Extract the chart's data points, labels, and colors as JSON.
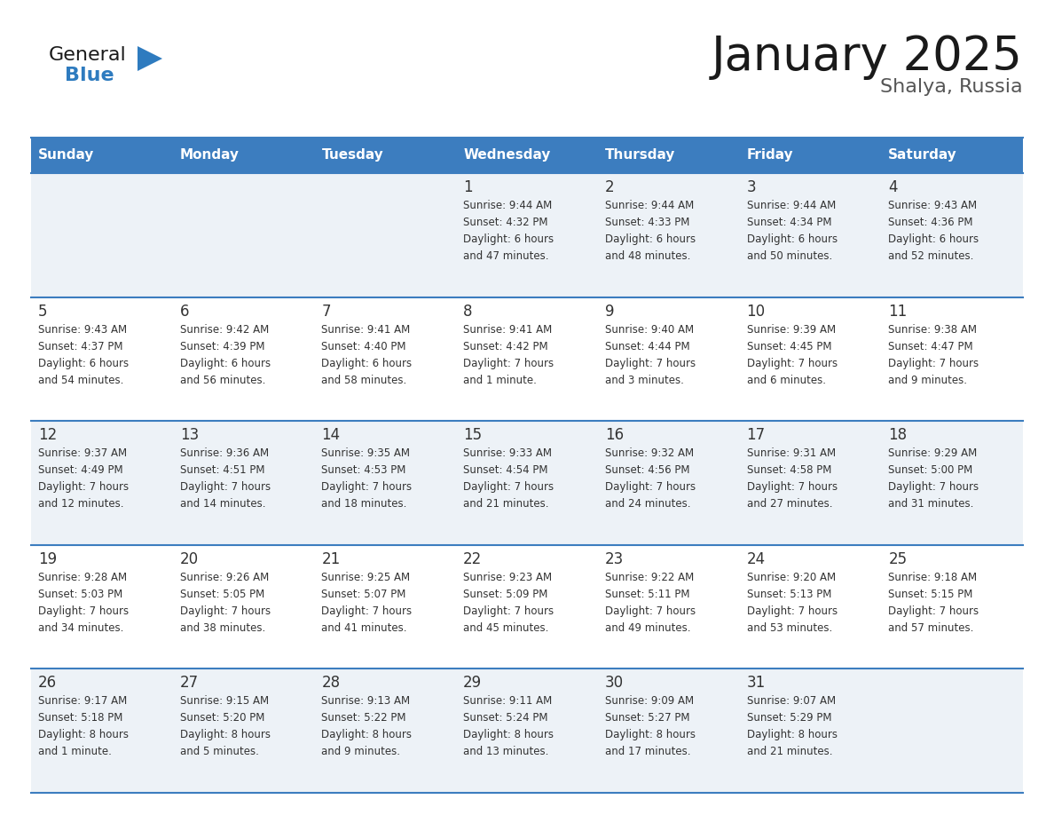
{
  "title": "January 2025",
  "subtitle": "Shalya, Russia",
  "days_of_week": [
    "Sunday",
    "Monday",
    "Tuesday",
    "Wednesday",
    "Thursday",
    "Friday",
    "Saturday"
  ],
  "header_bg": "#3c7dbf",
  "header_text": "#ffffff",
  "cell_bg_odd": "#edf2f7",
  "cell_bg_even": "#ffffff",
  "cell_text": "#333333",
  "border_color": "#3c7dbf",
  "day_number_color": "#333333",
  "calendar_data": [
    {
      "day": 1,
      "col": 3,
      "row": 0,
      "sunrise": "9:44 AM",
      "sunset": "4:32 PM",
      "daylight": "6 hours",
      "daylight2": "and 47 minutes."
    },
    {
      "day": 2,
      "col": 4,
      "row": 0,
      "sunrise": "9:44 AM",
      "sunset": "4:33 PM",
      "daylight": "6 hours",
      "daylight2": "and 48 minutes."
    },
    {
      "day": 3,
      "col": 5,
      "row": 0,
      "sunrise": "9:44 AM",
      "sunset": "4:34 PM",
      "daylight": "6 hours",
      "daylight2": "and 50 minutes."
    },
    {
      "day": 4,
      "col": 6,
      "row": 0,
      "sunrise": "9:43 AM",
      "sunset": "4:36 PM",
      "daylight": "6 hours",
      "daylight2": "and 52 minutes."
    },
    {
      "day": 5,
      "col": 0,
      "row": 1,
      "sunrise": "9:43 AM",
      "sunset": "4:37 PM",
      "daylight": "6 hours",
      "daylight2": "and 54 minutes."
    },
    {
      "day": 6,
      "col": 1,
      "row": 1,
      "sunrise": "9:42 AM",
      "sunset": "4:39 PM",
      "daylight": "6 hours",
      "daylight2": "and 56 minutes."
    },
    {
      "day": 7,
      "col": 2,
      "row": 1,
      "sunrise": "9:41 AM",
      "sunset": "4:40 PM",
      "daylight": "6 hours",
      "daylight2": "and 58 minutes."
    },
    {
      "day": 8,
      "col": 3,
      "row": 1,
      "sunrise": "9:41 AM",
      "sunset": "4:42 PM",
      "daylight": "7 hours",
      "daylight2": "and 1 minute."
    },
    {
      "day": 9,
      "col": 4,
      "row": 1,
      "sunrise": "9:40 AM",
      "sunset": "4:44 PM",
      "daylight": "7 hours",
      "daylight2": "and 3 minutes."
    },
    {
      "day": 10,
      "col": 5,
      "row": 1,
      "sunrise": "9:39 AM",
      "sunset": "4:45 PM",
      "daylight": "7 hours",
      "daylight2": "and 6 minutes."
    },
    {
      "day": 11,
      "col": 6,
      "row": 1,
      "sunrise": "9:38 AM",
      "sunset": "4:47 PM",
      "daylight": "7 hours",
      "daylight2": "and 9 minutes."
    },
    {
      "day": 12,
      "col": 0,
      "row": 2,
      "sunrise": "9:37 AM",
      "sunset": "4:49 PM",
      "daylight": "7 hours",
      "daylight2": "and 12 minutes."
    },
    {
      "day": 13,
      "col": 1,
      "row": 2,
      "sunrise": "9:36 AM",
      "sunset": "4:51 PM",
      "daylight": "7 hours",
      "daylight2": "and 14 minutes."
    },
    {
      "day": 14,
      "col": 2,
      "row": 2,
      "sunrise": "9:35 AM",
      "sunset": "4:53 PM",
      "daylight": "7 hours",
      "daylight2": "and 18 minutes."
    },
    {
      "day": 15,
      "col": 3,
      "row": 2,
      "sunrise": "9:33 AM",
      "sunset": "4:54 PM",
      "daylight": "7 hours",
      "daylight2": "and 21 minutes."
    },
    {
      "day": 16,
      "col": 4,
      "row": 2,
      "sunrise": "9:32 AM",
      "sunset": "4:56 PM",
      "daylight": "7 hours",
      "daylight2": "and 24 minutes."
    },
    {
      "day": 17,
      "col": 5,
      "row": 2,
      "sunrise": "9:31 AM",
      "sunset": "4:58 PM",
      "daylight": "7 hours",
      "daylight2": "and 27 minutes."
    },
    {
      "day": 18,
      "col": 6,
      "row": 2,
      "sunrise": "9:29 AM",
      "sunset": "5:00 PM",
      "daylight": "7 hours",
      "daylight2": "and 31 minutes."
    },
    {
      "day": 19,
      "col": 0,
      "row": 3,
      "sunrise": "9:28 AM",
      "sunset": "5:03 PM",
      "daylight": "7 hours",
      "daylight2": "and 34 minutes."
    },
    {
      "day": 20,
      "col": 1,
      "row": 3,
      "sunrise": "9:26 AM",
      "sunset": "5:05 PM",
      "daylight": "7 hours",
      "daylight2": "and 38 minutes."
    },
    {
      "day": 21,
      "col": 2,
      "row": 3,
      "sunrise": "9:25 AM",
      "sunset": "5:07 PM",
      "daylight": "7 hours",
      "daylight2": "and 41 minutes."
    },
    {
      "day": 22,
      "col": 3,
      "row": 3,
      "sunrise": "9:23 AM",
      "sunset": "5:09 PM",
      "daylight": "7 hours",
      "daylight2": "and 45 minutes."
    },
    {
      "day": 23,
      "col": 4,
      "row": 3,
      "sunrise": "9:22 AM",
      "sunset": "5:11 PM",
      "daylight": "7 hours",
      "daylight2": "and 49 minutes."
    },
    {
      "day": 24,
      "col": 5,
      "row": 3,
      "sunrise": "9:20 AM",
      "sunset": "5:13 PM",
      "daylight": "7 hours",
      "daylight2": "and 53 minutes."
    },
    {
      "day": 25,
      "col": 6,
      "row": 3,
      "sunrise": "9:18 AM",
      "sunset": "5:15 PM",
      "daylight": "7 hours",
      "daylight2": "and 57 minutes."
    },
    {
      "day": 26,
      "col": 0,
      "row": 4,
      "sunrise": "9:17 AM",
      "sunset": "5:18 PM",
      "daylight": "8 hours",
      "daylight2": "and 1 minute."
    },
    {
      "day": 27,
      "col": 1,
      "row": 4,
      "sunrise": "9:15 AM",
      "sunset": "5:20 PM",
      "daylight": "8 hours",
      "daylight2": "and 5 minutes."
    },
    {
      "day": 28,
      "col": 2,
      "row": 4,
      "sunrise": "9:13 AM",
      "sunset": "5:22 PM",
      "daylight": "8 hours",
      "daylight2": "and 9 minutes."
    },
    {
      "day": 29,
      "col": 3,
      "row": 4,
      "sunrise": "9:11 AM",
      "sunset": "5:24 PM",
      "daylight": "8 hours",
      "daylight2": "and 13 minutes."
    },
    {
      "day": 30,
      "col": 4,
      "row": 4,
      "sunrise": "9:09 AM",
      "sunset": "5:27 PM",
      "daylight": "8 hours",
      "daylight2": "and 17 minutes."
    },
    {
      "day": 31,
      "col": 5,
      "row": 4,
      "sunrise": "9:07 AM",
      "sunset": "5:29 PM",
      "daylight": "8 hours",
      "daylight2": "and 21 minutes."
    }
  ]
}
